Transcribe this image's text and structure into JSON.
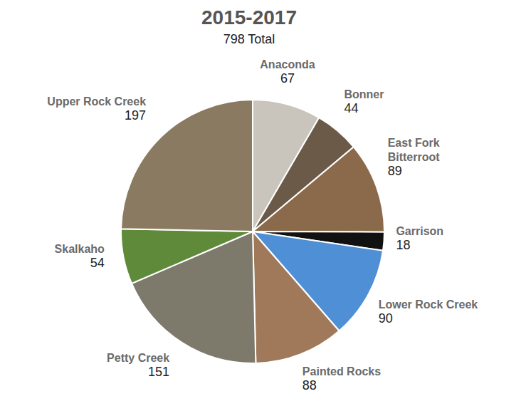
{
  "chart_data": {
    "type": "pie",
    "title": "2015-2017",
    "subtitle": "798 Total",
    "categories": [
      "Anaconda",
      "Bonner",
      "East Fork Bitterroot",
      "Garrison",
      "Lower Rock Creek",
      "Painted Rocks",
      "Petty Creek",
      "Skalkaho",
      "Upper Rock Creek"
    ],
    "values": [
      67,
      44,
      89,
      18,
      90,
      88,
      151,
      54,
      197
    ],
    "colors": [
      "#c9c4bc",
      "#6b5a48",
      "#8a6a4a",
      "#111111",
      "#4f8fd6",
      "#a0795a",
      "#7d7a6c",
      "#5e8a3a",
      "#8a7a62"
    ],
    "data_labels": true
  }
}
